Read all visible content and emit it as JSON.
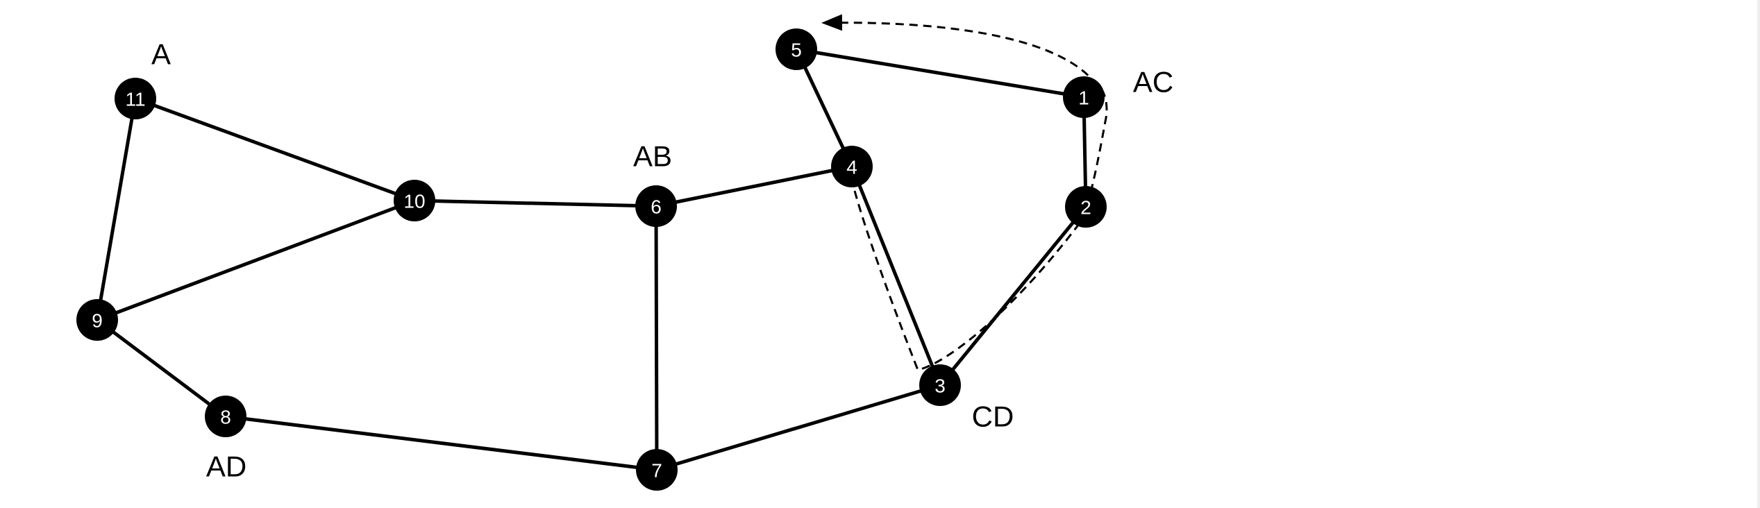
{
  "nodes": [
    {
      "id": "1",
      "label": "1"
    },
    {
      "id": "2",
      "label": "2"
    },
    {
      "id": "3",
      "label": "3"
    },
    {
      "id": "4",
      "label": "4"
    },
    {
      "id": "5",
      "label": "5"
    },
    {
      "id": "6",
      "label": "6"
    },
    {
      "id": "7",
      "label": "7"
    },
    {
      "id": "8",
      "label": "8"
    },
    {
      "id": "9",
      "label": "9"
    },
    {
      "id": "10",
      "label": "10"
    },
    {
      "id": "11",
      "label": "11"
    }
  ],
  "edges": [
    [
      "11",
      "10"
    ],
    [
      "11",
      "9"
    ],
    [
      "10",
      "9"
    ],
    [
      "10",
      "6"
    ],
    [
      "9",
      "8"
    ],
    [
      "8",
      "7"
    ],
    [
      "6",
      "7"
    ],
    [
      "6",
      "4"
    ],
    [
      "7",
      "3"
    ],
    [
      "4",
      "5"
    ],
    [
      "4",
      "3"
    ],
    [
      "5",
      "1"
    ],
    [
      "1",
      "2"
    ],
    [
      "2",
      "3"
    ]
  ],
  "region_labels": [
    {
      "id": "A",
      "text": "A"
    },
    {
      "id": "AB",
      "text": "AB"
    },
    {
      "id": "AC",
      "text": "AC"
    },
    {
      "id": "AD",
      "text": "AD"
    },
    {
      "id": "CD",
      "text": "CD"
    }
  ],
  "dashed_route": {
    "style": "dashed",
    "arrow": "end",
    "path_nodes": [
      "4",
      "3",
      "2",
      "1",
      "5"
    ]
  },
  "colors": {
    "node_fill": "#000000",
    "node_text": "#ffffff",
    "edge": "#000000",
    "background": "#ffffff"
  }
}
